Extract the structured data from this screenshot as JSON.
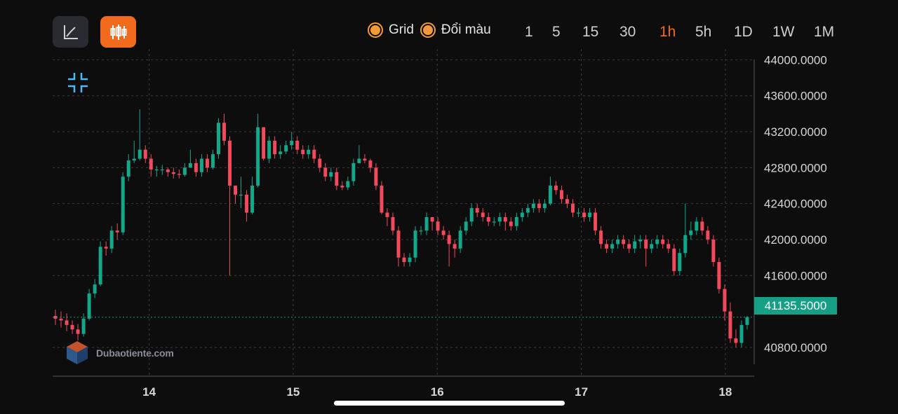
{
  "toolbar": {
    "line_chart_icon": "line-chart-icon",
    "candle_chart_icon": "candlestick-icon",
    "toggles": [
      {
        "label": "Grid",
        "checked": true
      },
      {
        "label": "Đổi màu",
        "checked": true
      }
    ],
    "intervals": [
      "1",
      "5",
      "15",
      "30",
      "1h",
      "5h",
      "1D",
      "1W",
      "1M"
    ],
    "active_interval": "1h"
  },
  "watermark": {
    "text": "Dubaotiente.com"
  },
  "current_price": "41135.5000",
  "colors": {
    "up": "#12a88a",
    "down": "#f2495c",
    "accent": "#f26a1b",
    "price_tag": "#15a085"
  },
  "chart_data": {
    "type": "candlestick",
    "title": "",
    "xlabel": "",
    "ylabel": "",
    "x_ticks": [
      "14",
      "15",
      "16",
      "17",
      "18"
    ],
    "y_ticks": [
      "40800.0000",
      "41600.0000",
      "42000.0000",
      "42400.0000",
      "42800.0000",
      "43200.0000",
      "43600.0000",
      "44000.0000"
    ],
    "ylim": [
      40480,
      44120
    ],
    "xlim": [
      13.33,
      18.2
    ],
    "grid": true,
    "current_price": 41135.5,
    "series": [
      {
        "ohlc": [
          [
            41150,
            41120,
            41220,
            41050
          ],
          [
            41120,
            41100,
            41200,
            41020
          ],
          [
            41100,
            41050,
            41180,
            40980
          ],
          [
            41050,
            41000,
            41100,
            40950
          ],
          [
            41000,
            40950,
            41060,
            40880
          ],
          [
            40950,
            41120,
            41180,
            40920
          ],
          [
            41120,
            41400,
            41450,
            41100
          ],
          [
            41400,
            41500,
            41560,
            41350
          ],
          [
            41500,
            41920,
            41980,
            41480
          ],
          [
            41920,
            41900,
            41980,
            41820
          ],
          [
            41900,
            42100,
            42150,
            41850
          ],
          [
            42100,
            42080,
            42180,
            42000
          ],
          [
            42080,
            42700,
            42750,
            42050
          ],
          [
            42700,
            42880,
            42950,
            42650
          ],
          [
            42880,
            42900,
            43100,
            42850
          ],
          [
            42900,
            43000,
            43450,
            42880
          ],
          [
            43000,
            42900,
            43050,
            42850
          ],
          [
            42900,
            42780,
            42950,
            42700
          ],
          [
            42780,
            42780,
            42820,
            42700
          ],
          [
            42780,
            42780,
            42830,
            42720
          ],
          [
            42780,
            42750,
            42800,
            42700
          ],
          [
            42750,
            42730,
            42800,
            42680
          ],
          [
            42730,
            42720,
            42780,
            42680
          ],
          [
            42720,
            42800,
            42850,
            42700
          ],
          [
            42800,
            42850,
            43000,
            42800
          ],
          [
            42850,
            42750,
            42900,
            42700
          ],
          [
            42750,
            42900,
            42950,
            42700
          ],
          [
            42900,
            42800,
            42950,
            42750
          ],
          [
            42800,
            42950,
            43000,
            42780
          ],
          [
            42950,
            43300,
            43350,
            42900
          ],
          [
            43300,
            43100,
            43400,
            43050
          ],
          [
            43100,
            42600,
            43150,
            41600
          ],
          [
            42600,
            42500,
            42600,
            42400
          ],
          [
            42500,
            42500,
            42700,
            42350
          ],
          [
            42500,
            42300,
            42550,
            42200
          ],
          [
            42300,
            42600,
            42700,
            42280
          ],
          [
            42600,
            43250,
            43400,
            42580
          ],
          [
            43250,
            42900,
            43250,
            42880
          ],
          [
            42900,
            43100,
            43150,
            42850
          ],
          [
            43100,
            42950,
            43150,
            42900
          ],
          [
            42950,
            42980,
            43050,
            42900
          ],
          [
            42980,
            43050,
            43100,
            42950
          ],
          [
            43050,
            43100,
            43200,
            43000
          ],
          [
            43100,
            43000,
            43150,
            42950
          ],
          [
            43000,
            42950,
            43050,
            42900
          ],
          [
            42950,
            43000,
            43050,
            42900
          ],
          [
            43000,
            42900,
            43050,
            42850
          ],
          [
            42900,
            42800,
            42950,
            42750
          ],
          [
            42800,
            42700,
            42850,
            42650
          ],
          [
            42700,
            42750,
            42800,
            42650
          ],
          [
            42750,
            42600,
            42800,
            42550
          ],
          [
            42600,
            42580,
            42650,
            42550
          ],
          [
            42580,
            42650,
            42700,
            42550
          ],
          [
            42650,
            42850,
            42900,
            42600
          ],
          [
            42850,
            42900,
            43050,
            42850
          ],
          [
            42900,
            42880,
            42950,
            42850
          ],
          [
            42880,
            42800,
            42900,
            42750
          ],
          [
            42800,
            42600,
            42850,
            42550
          ],
          [
            42600,
            42300,
            42650,
            42280
          ],
          [
            42300,
            42250,
            42350,
            42150
          ],
          [
            42250,
            42100,
            42300,
            42050
          ],
          [
            42100,
            41800,
            42150,
            41700
          ],
          [
            41800,
            41750,
            41850,
            41700
          ],
          [
            41750,
            41800,
            41850,
            41700
          ],
          [
            41800,
            42100,
            42150,
            41750
          ],
          [
            42100,
            42100,
            42150,
            42050
          ],
          [
            42100,
            42250,
            42300,
            42050
          ],
          [
            42250,
            42200,
            42250,
            42100
          ],
          [
            42200,
            42100,
            42250,
            42050
          ],
          [
            42100,
            42050,
            42150,
            42000
          ],
          [
            42050,
            41950,
            42100,
            41700
          ],
          [
            41950,
            41900,
            42000,
            41800
          ],
          [
            41900,
            42100,
            42150,
            41850
          ],
          [
            42100,
            42200,
            42250,
            42050
          ],
          [
            42200,
            42350,
            42400,
            42150
          ],
          [
            42350,
            42300,
            42400,
            42250
          ],
          [
            42300,
            42250,
            42350,
            42200
          ],
          [
            42250,
            42200,
            42300,
            42150
          ],
          [
            42200,
            42200,
            42250,
            42150
          ],
          [
            42200,
            42250,
            42300,
            42150
          ],
          [
            42250,
            42200,
            42300,
            42100
          ],
          [
            42200,
            42150,
            42250,
            42100
          ],
          [
            42150,
            42250,
            42300,
            42100
          ],
          [
            42250,
            42300,
            42350,
            42200
          ],
          [
            42300,
            42350,
            42400,
            42250
          ],
          [
            42350,
            42400,
            42450,
            42300
          ],
          [
            42400,
            42350,
            42450,
            42300
          ],
          [
            42350,
            42400,
            42450,
            42300
          ],
          [
            42400,
            42600,
            42700,
            42380
          ],
          [
            42600,
            42550,
            42650,
            42500
          ],
          [
            42550,
            42450,
            42600,
            42400
          ],
          [
            42450,
            42400,
            42500,
            42350
          ],
          [
            42400,
            42300,
            42450,
            42250
          ],
          [
            42300,
            42300,
            42350,
            42250
          ],
          [
            42300,
            42250,
            42350,
            42200
          ],
          [
            42250,
            42300,
            42350,
            42200
          ],
          [
            42300,
            42100,
            42350,
            42050
          ],
          [
            42100,
            41950,
            42150,
            41900
          ],
          [
            41950,
            41900,
            42000,
            41850
          ],
          [
            41900,
            41950,
            42000,
            41850
          ],
          [
            41950,
            42000,
            42050,
            41900
          ],
          [
            42000,
            41950,
            42050,
            41900
          ],
          [
            41950,
            41900,
            42000,
            41850
          ],
          [
            41900,
            41980,
            42050,
            41850
          ],
          [
            41980,
            42000,
            42050,
            41900
          ],
          [
            42000,
            41900,
            42050,
            41700
          ],
          [
            41900,
            41950,
            42000,
            41850
          ],
          [
            41950,
            42000,
            42050,
            41900
          ],
          [
            42000,
            41950,
            42050,
            41900
          ],
          [
            41950,
            41900,
            42000,
            41850
          ],
          [
            41900,
            41650,
            41950,
            41600
          ],
          [
            41650,
            41850,
            41900,
            41600
          ],
          [
            41850,
            42050,
            42400,
            41800
          ],
          [
            42050,
            42100,
            42200,
            42000
          ],
          [
            42100,
            42200,
            42250,
            42050
          ],
          [
            42200,
            42100,
            42250,
            42050
          ],
          [
            42100,
            42000,
            42150,
            41950
          ],
          [
            42000,
            41750,
            42050,
            41700
          ],
          [
            41750,
            41450,
            41800,
            41400
          ],
          [
            41450,
            41200,
            41500,
            41100
          ],
          [
            41200,
            40900,
            41300,
            40850
          ],
          [
            40900,
            40850,
            41000,
            40800
          ],
          [
            40850,
            41050,
            41100,
            40800
          ],
          [
            41050,
            41135,
            41150,
            41000
          ]
        ]
      }
    ]
  }
}
